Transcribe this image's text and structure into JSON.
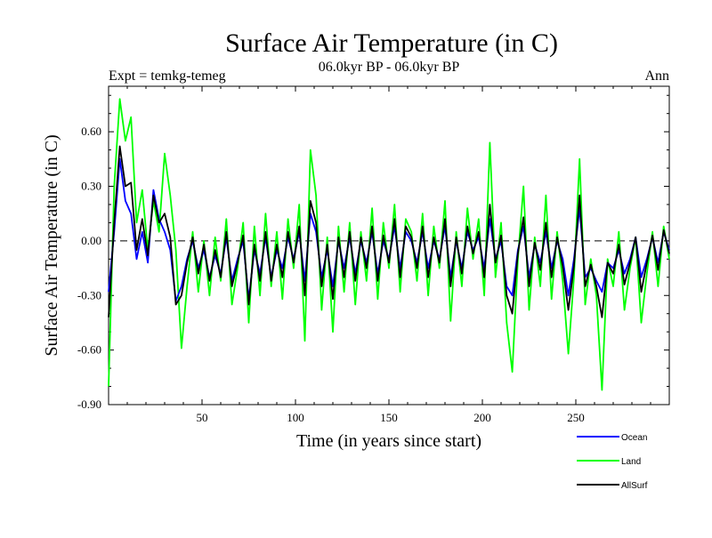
{
  "chart_data": {
    "type": "line",
    "title": "Surface Air Temperature (in C)",
    "subtitle": "06.0kyr BP - 06.0kyr BP",
    "left_label": "Expt = temkg-temeg",
    "right_label": "Ann",
    "xlabel": "Time (in years since start)",
    "ylabel": "Surface Air Temperature (in C)",
    "xlim": [
      0,
      300
    ],
    "ylim": [
      -0.9,
      0.85
    ],
    "x_ticks": [
      50,
      100,
      150,
      200,
      250
    ],
    "y_ticks": [
      -0.9,
      -0.6,
      -0.3,
      0.0,
      0.3,
      0.6
    ],
    "x_tick_labels": [
      "50",
      "100",
      "150",
      "200",
      "250"
    ],
    "y_tick_labels": [
      "-0.90",
      "-0.60",
      "-0.30",
      "0.00",
      "0.30",
      "0.60"
    ],
    "zero_line": true,
    "legend_position": "bottom-right",
    "series": [
      {
        "name": "Land",
        "color": "#00ff00",
        "x": [
          0,
          3,
          6,
          9,
          12,
          15,
          18,
          21,
          24,
          27,
          30,
          33,
          36,
          39,
          42,
          45,
          48,
          51,
          54,
          57,
          60,
          63,
          66,
          69,
          72,
          75,
          78,
          81,
          84,
          87,
          90,
          93,
          96,
          99,
          102,
          105,
          108,
          111,
          114,
          117,
          120,
          123,
          126,
          129,
          132,
          135,
          138,
          141,
          144,
          147,
          150,
          153,
          156,
          159,
          162,
          165,
          168,
          171,
          174,
          177,
          180,
          183,
          186,
          189,
          192,
          195,
          198,
          201,
          204,
          207,
          210,
          213,
          216,
          219,
          222,
          225,
          228,
          231,
          234,
          237,
          240,
          243,
          246,
          249,
          252,
          255,
          258,
          261,
          264,
          267,
          270,
          273,
          276,
          279,
          282,
          285,
          288,
          291,
          294,
          297,
          300
        ],
        "values": [
          -0.8,
          0.3,
          0.78,
          0.55,
          0.68,
          0.1,
          0.28,
          -0.05,
          0.22,
          0.05,
          0.48,
          0.25,
          -0.05,
          -0.59,
          -0.25,
          0.05,
          -0.28,
          0.0,
          -0.3,
          0.02,
          -0.22,
          0.12,
          -0.35,
          -0.15,
          0.1,
          -0.45,
          0.08,
          -0.3,
          0.15,
          -0.25,
          0.05,
          -0.32,
          0.12,
          -0.15,
          0.2,
          -0.55,
          0.5,
          0.25,
          -0.38,
          0.02,
          -0.5,
          0.08,
          -0.28,
          0.1,
          -0.35,
          0.05,
          -0.22,
          0.18,
          -0.32,
          0.1,
          -0.15,
          0.2,
          -0.28,
          0.12,
          0.05,
          -0.22,
          0.15,
          -0.3,
          0.08,
          -0.15,
          0.22,
          -0.44,
          0.05,
          -0.25,
          0.18,
          -0.1,
          0.12,
          -0.3,
          0.54,
          -0.2,
          0.1,
          -0.45,
          -0.72,
          -0.1,
          0.3,
          -0.38,
          0.02,
          -0.25,
          0.25,
          -0.32,
          0.05,
          -0.22,
          -0.62,
          -0.2,
          0.45,
          -0.35,
          -0.1,
          -0.3,
          -0.82,
          -0.1,
          -0.25,
          0.05,
          -0.38,
          -0.15,
          0.02,
          -0.45,
          -0.18,
          0.05,
          -0.25,
          0.08,
          -0.1
        ]
      },
      {
        "name": "Ocean",
        "color": "#0000ff",
        "x": [
          0,
          3,
          6,
          9,
          12,
          15,
          18,
          21,
          24,
          27,
          30,
          33,
          36,
          39,
          42,
          45,
          48,
          51,
          54,
          57,
          60,
          63,
          66,
          69,
          72,
          75,
          78,
          81,
          84,
          87,
          90,
          93,
          96,
          99,
          102,
          105,
          108,
          111,
          114,
          117,
          120,
          123,
          126,
          129,
          132,
          135,
          138,
          141,
          144,
          147,
          150,
          153,
          156,
          159,
          162,
          165,
          168,
          171,
          174,
          177,
          180,
          183,
          186,
          189,
          192,
          195,
          198,
          201,
          204,
          207,
          210,
          213,
          216,
          219,
          222,
          225,
          228,
          231,
          234,
          237,
          240,
          243,
          246,
          249,
          252,
          255,
          258,
          261,
          264,
          267,
          270,
          273,
          276,
          279,
          282,
          285,
          288,
          291,
          294,
          297,
          300
        ],
        "values": [
          -0.28,
          0.05,
          0.45,
          0.22,
          0.15,
          -0.1,
          0.05,
          -0.12,
          0.28,
          0.12,
          0.05,
          -0.05,
          -0.33,
          -0.25,
          -0.1,
          0.0,
          -0.15,
          -0.05,
          -0.2,
          -0.08,
          -0.18,
          0.02,
          -0.22,
          -0.1,
          0.0,
          -0.32,
          -0.05,
          -0.18,
          0.02,
          -0.2,
          -0.05,
          -0.15,
          0.02,
          -0.1,
          0.05,
          -0.22,
          0.15,
          0.05,
          -0.2,
          -0.05,
          -0.25,
          0.0,
          -0.15,
          0.02,
          -0.18,
          0.0,
          -0.12,
          0.05,
          -0.18,
          0.0,
          -0.1,
          0.08,
          -0.15,
          0.05,
          0.0,
          -0.12,
          0.05,
          -0.15,
          0.0,
          -0.1,
          0.08,
          -0.2,
          0.0,
          -0.15,
          0.05,
          -0.05,
          0.02,
          -0.15,
          0.12,
          -0.1,
          0.0,
          -0.25,
          -0.3,
          -0.05,
          0.08,
          -0.2,
          -0.02,
          -0.12,
          0.05,
          -0.15,
          0.0,
          -0.1,
          -0.3,
          -0.1,
          0.18,
          -0.2,
          -0.15,
          -0.22,
          -0.28,
          -0.12,
          -0.15,
          -0.05,
          -0.18,
          -0.1,
          0.02,
          -0.2,
          -0.1,
          0.02,
          -0.12,
          0.05,
          -0.05
        ]
      },
      {
        "name": "AllSurf",
        "color": "#000000",
        "x": [
          0,
          3,
          6,
          9,
          12,
          15,
          18,
          21,
          24,
          27,
          30,
          33,
          36,
          39,
          42,
          45,
          48,
          51,
          54,
          57,
          60,
          63,
          66,
          69,
          72,
          75,
          78,
          81,
          84,
          87,
          90,
          93,
          96,
          99,
          102,
          105,
          108,
          111,
          114,
          117,
          120,
          123,
          126,
          129,
          132,
          135,
          138,
          141,
          144,
          147,
          150,
          153,
          156,
          159,
          162,
          165,
          168,
          171,
          174,
          177,
          180,
          183,
          186,
          189,
          192,
          195,
          198,
          201,
          204,
          207,
          210,
          213,
          216,
          219,
          222,
          225,
          228,
          231,
          234,
          237,
          240,
          243,
          246,
          249,
          252,
          255,
          258,
          261,
          264,
          267,
          270,
          273,
          276,
          279,
          282,
          285,
          288,
          291,
          294,
          297,
          300
        ],
        "values": [
          -0.42,
          0.1,
          0.52,
          0.3,
          0.32,
          -0.05,
          0.12,
          -0.08,
          0.25,
          0.1,
          0.15,
          0.02,
          -0.35,
          -0.3,
          -0.12,
          0.02,
          -0.18,
          -0.02,
          -0.22,
          -0.05,
          -0.2,
          0.05,
          -0.25,
          -0.12,
          0.03,
          -0.35,
          -0.02,
          -0.22,
          0.05,
          -0.22,
          -0.02,
          -0.2,
          0.05,
          -0.12,
          0.08,
          -0.3,
          0.22,
          0.1,
          -0.25,
          -0.02,
          -0.32,
          0.02,
          -0.2,
          0.05,
          -0.22,
          0.02,
          -0.15,
          0.08,
          -0.22,
          0.03,
          -0.12,
          0.12,
          -0.2,
          0.08,
          0.02,
          -0.15,
          0.08,
          -0.2,
          0.02,
          -0.12,
          0.12,
          -0.25,
          0.02,
          -0.18,
          0.08,
          -0.07,
          0.05,
          -0.2,
          0.2,
          -0.12,
          0.03,
          -0.3,
          -0.4,
          -0.07,
          0.13,
          -0.25,
          -0.01,
          -0.16,
          0.1,
          -0.2,
          0.02,
          -0.14,
          -0.38,
          -0.14,
          0.25,
          -0.25,
          -0.13,
          -0.25,
          -0.42,
          -0.12,
          -0.18,
          -0.02,
          -0.24,
          -0.12,
          0.02,
          -0.28,
          -0.12,
          0.03,
          -0.16,
          0.06,
          -0.07
        ]
      }
    ]
  }
}
